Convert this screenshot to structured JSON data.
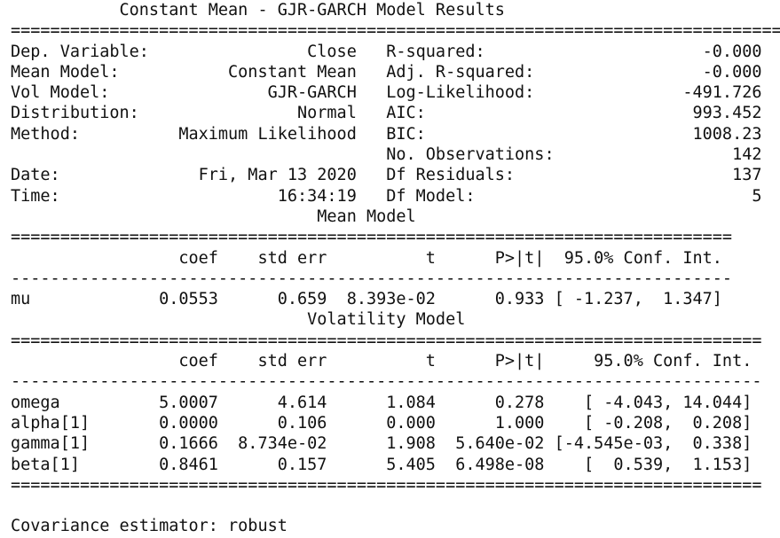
{
  "report": {
    "lines": [
      "           Constant Mean - GJR-GARCH Model Results            ",
      "==============================================================================",
      "Dep. Variable:                Close   R-squared:                      -0.000",
      "Mean Model:           Constant Mean   Adj. R-squared:                 -0.000",
      "Vol Model:                GJR-GARCH   Log-Likelihood:               -491.726",
      "Distribution:                Normal   AIC:                           993.452",
      "Method:          Maximum Likelihood   BIC:                           1008.23",
      "                                      No. Observations:                  142",
      "Date:              Fri, Mar 13 2020   Df Residuals:                      137",
      "Time:                      16:34:19   Df Model:                            5",
      "                               Mean Model                               ",
      "=========================================================================",
      "                 coef    std err          t      P>|t|  95.0% Conf. Int.",
      "-------------------------------------------------------------------------",
      "mu             0.0553      0.659  8.393e-02      0.933 [ -1.237,  1.347]",
      "                              Volatility Model                              ",
      "============================================================================",
      "                 coef    std err          t      P>|t|     95.0% Conf. Int.",
      "----------------------------------------------------------------------------",
      "omega          5.0007      4.614      1.084      0.278    [ -4.043, 14.044]",
      "alpha[1]       0.0000      0.106      0.000      1.000    [ -0.208,  0.208]",
      "gamma[1]       0.1666  8.734e-02      1.908  5.640e-02 [-4.545e-03,  0.338]",
      "beta[1]        0.8461      0.157      5.405  6.498e-08    [  0.539,  1.153]",
      "============================================================================",
      "",
      "Covariance estimator: robust"
    ]
  }
}
